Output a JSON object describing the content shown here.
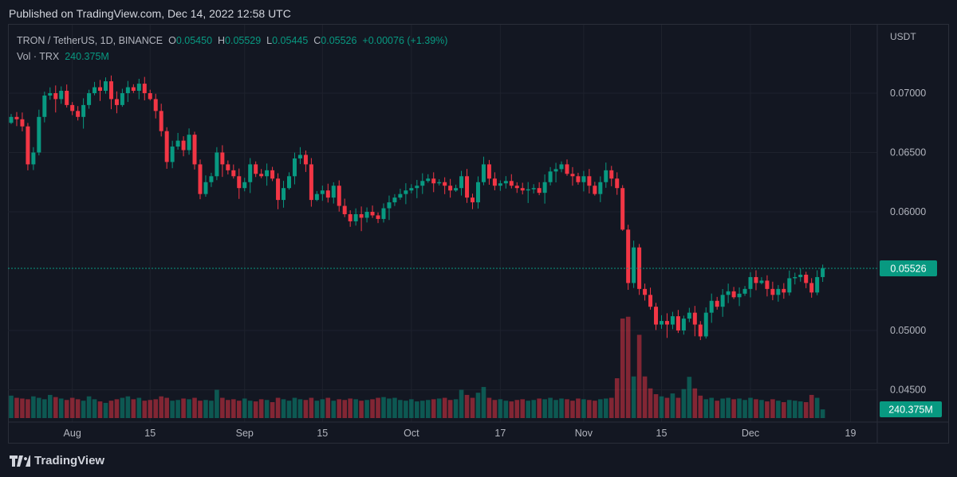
{
  "published": "Published on TradingView.com, Dec 14, 2022 12:58 UTC",
  "legend": {
    "symbol": "TRON / TetherUS, 1D, BINANCE",
    "o_label": "O",
    "o": "0.05450",
    "h_label": "H",
    "h": "0.05529",
    "l_label": "L",
    "l": "0.05445",
    "c_label": "C",
    "c": "0.05526",
    "change": "+0.00076 (+1.39%)",
    "vol_label": "Vol · TRX",
    "vol": "240.375M"
  },
  "axis_currency": "USDT",
  "current_price_label": "0.05526",
  "current_volume_label": "240.375M",
  "footer_brand": "TradingView",
  "colors": {
    "up": "#089981",
    "down": "#f23645",
    "bg": "#131722",
    "grid": "#1e222d"
  },
  "chart_data": {
    "type": "candlestick",
    "title": "TRON / TetherUS, 1D, BINANCE",
    "start_date": "2022-07-21",
    "end_date": "2022-12-14",
    "first_open": 0.0675,
    "closes": [
      0.068,
      0.0678,
      0.0672,
      0.064,
      0.065,
      0.068,
      0.0698,
      0.07,
      0.0695,
      0.0702,
      0.069,
      0.0685,
      0.068,
      0.069,
      0.07,
      0.0705,
      0.0702,
      0.071,
      0.0695,
      0.069,
      0.07,
      0.0705,
      0.0702,
      0.0708,
      0.07,
      0.0695,
      0.0685,
      0.0668,
      0.0642,
      0.0655,
      0.066,
      0.0652,
      0.0665,
      0.064,
      0.0615,
      0.0625,
      0.063,
      0.065,
      0.064,
      0.0635,
      0.063,
      0.062,
      0.0625,
      0.064,
      0.0632,
      0.063,
      0.0635,
      0.0628,
      0.061,
      0.062,
      0.063,
      0.0645,
      0.0648,
      0.064,
      0.061,
      0.0615,
      0.0618,
      0.0612,
      0.0622,
      0.0605,
      0.0598,
      0.0592,
      0.0598,
      0.0595,
      0.06,
      0.0597,
      0.0594,
      0.0603,
      0.0608,
      0.0612,
      0.0615,
      0.0618,
      0.062,
      0.0622,
      0.0626,
      0.0628,
      0.0624,
      0.0625,
      0.0622,
      0.0618,
      0.062,
      0.063,
      0.0612,
      0.0608,
      0.0625,
      0.064,
      0.0628,
      0.0622,
      0.0624,
      0.0626,
      0.0622,
      0.062,
      0.0618,
      0.0619,
      0.062,
      0.0616,
      0.0625,
      0.0634,
      0.0636,
      0.064,
      0.0632,
      0.063,
      0.0625,
      0.063,
      0.0622,
      0.0615,
      0.0625,
      0.0635,
      0.0628,
      0.062,
      0.0585,
      0.054,
      0.057,
      0.0535,
      0.053,
      0.052,
      0.0505,
      0.0508,
      0.0505,
      0.0512,
      0.05,
      0.051,
      0.0515,
      0.0505,
      0.0495,
      0.0515,
      0.0525,
      0.052,
      0.053,
      0.0533,
      0.0528,
      0.0531,
      0.0535,
      0.0545,
      0.054,
      0.0542,
      0.0535,
      0.053,
      0.0535,
      0.0532,
      0.0544,
      0.0545,
      0.0547,
      0.054,
      0.0532,
      0.0545,
      0.05526
    ],
    "volumes_millions": [
      620,
      560,
      540,
      520,
      600,
      560,
      520,
      640,
      580,
      540,
      500,
      560,
      520,
      480,
      600,
      520,
      460,
      420,
      480,
      520,
      560,
      600,
      520,
      560,
      480,
      500,
      520,
      600,
      560,
      480,
      500,
      540,
      520,
      560,
      480,
      500,
      480,
      780,
      560,
      500,
      520,
      480,
      540,
      480,
      460,
      520,
      500,
      440,
      560,
      520,
      480,
      560,
      520,
      500,
      560,
      480,
      520,
      560,
      480,
      520,
      500,
      540,
      520,
      480,
      500,
      520,
      560,
      580,
      540,
      560,
      500,
      480,
      520,
      460,
      480,
      500,
      520,
      540,
      560,
      500,
      520,
      780,
      640,
      560,
      700,
      860,
      560,
      500,
      520,
      480,
      460,
      500,
      520,
      480,
      500,
      540,
      520,
      560,
      500,
      540,
      520,
      480,
      540,
      520,
      500,
      480,
      520,
      540,
      560,
      1100,
      2750,
      2800,
      1150,
      2300,
      1150,
      820,
      660,
      600,
      560,
      680,
      560,
      800,
      1140,
      820,
      620,
      520,
      560,
      480,
      540,
      560,
      520,
      540,
      500,
      560,
      520,
      500,
      460,
      520,
      480,
      440,
      500,
      480,
      460,
      440,
      640,
      560,
      240.375
    ],
    "y_ticks": [
      "0.07000",
      "0.06500",
      "0.06000",
      "0.05000",
      "0.04500"
    ],
    "y_tick_values": [
      0.07,
      0.065,
      0.06,
      0.05,
      0.045
    ],
    "x_ticks": [
      {
        "label": "Aug",
        "day": 11
      },
      {
        "label": "15",
        "day": 25
      },
      {
        "label": "Sep",
        "day": 42
      },
      {
        "label": "15",
        "day": 56
      },
      {
        "label": "Oct",
        "day": 72
      },
      {
        "label": "17",
        "day": 88
      },
      {
        "label": "Nov",
        "day": 103
      },
      {
        "label": "15",
        "day": 117
      },
      {
        "label": "Dec",
        "day": 133
      },
      {
        "label": "19",
        "day": 151
      }
    ],
    "ylim": [
      0.0435,
      0.0725
    ]
  }
}
